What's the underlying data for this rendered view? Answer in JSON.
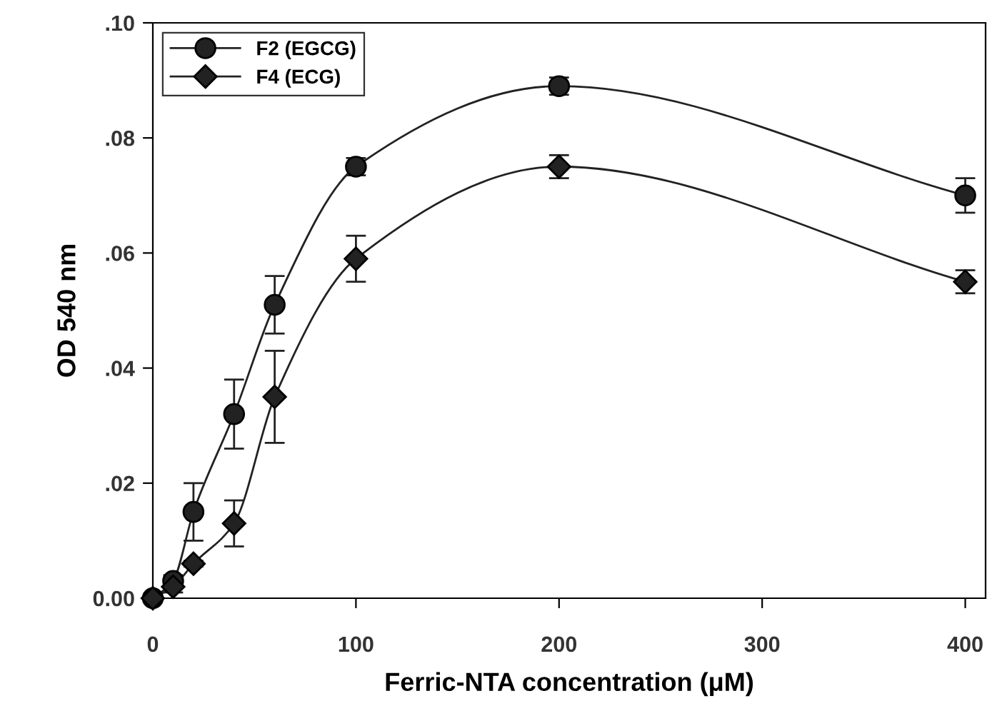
{
  "chart_data": {
    "type": "line",
    "xlabel": "Ferric-NTA concentration (μM)",
    "ylabel": "OD 540 nm",
    "x": [
      0,
      10,
      20,
      40,
      60,
      100,
      200,
      400
    ],
    "series": [
      {
        "name": "F2 (EGCG)",
        "color": "#222222",
        "marker": "circle",
        "values": [
          0,
          0.003,
          0.015,
          0.032,
          0.051,
          0.075,
          0.089,
          0.07
        ],
        "errors": [
          null,
          0.001,
          0.005,
          0.006,
          0.005,
          0.0015,
          0.0015,
          0.003
        ]
      },
      {
        "name": "F4 (ECG)",
        "color": "#222222",
        "marker": "diamond",
        "values": [
          0,
          0.002,
          0.006,
          0.013,
          0.035,
          0.059,
          0.075,
          0.055
        ],
        "errors": [
          null,
          0.001,
          0.0005,
          0.004,
          0.008,
          0.004,
          0.002,
          0.002
        ]
      }
    ],
    "xlim": [
      0,
      410
    ],
    "ylim": [
      0,
      0.1
    ],
    "xticks": [
      0,
      100,
      200,
      300,
      400
    ],
    "yticks": [
      {
        "value": 0,
        "label": "0.00"
      },
      {
        "value": 0.02,
        "label": ".02"
      },
      {
        "value": 0.04,
        "label": ".04"
      },
      {
        "value": 0.06,
        "label": ".06"
      },
      {
        "value": 0.08,
        "label": ".08"
      },
      {
        "value": 0.1,
        "label": ".10"
      }
    ],
    "grid": false,
    "legend": "top left",
    "line_style": "solid"
  }
}
